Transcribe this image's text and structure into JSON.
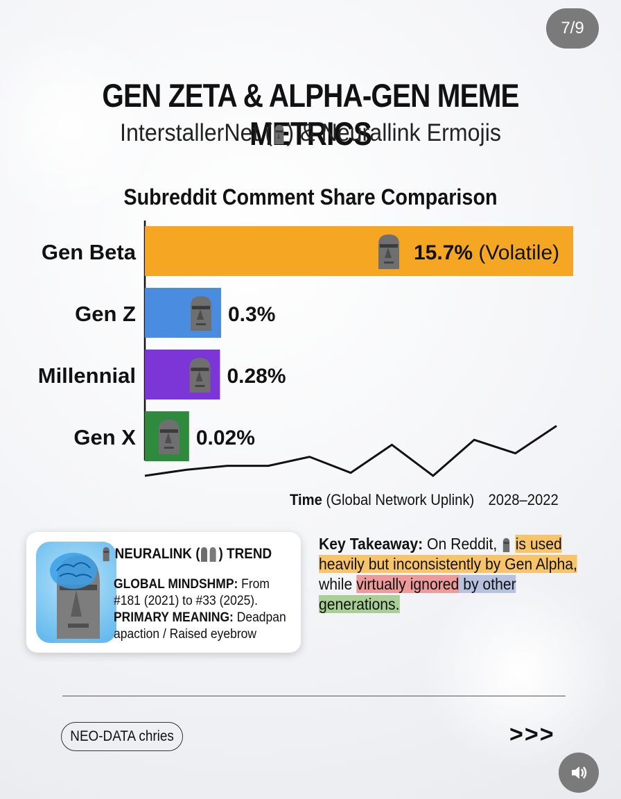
{
  "page_counter": "7/9",
  "title": "GEN ZETA & ALPHA-GEN MEME METRICS",
  "subtitle_prefix": "InterstallerNet (",
  "subtitle_suffix": ") & Neurallink Ermojis",
  "chart_data": {
    "type": "bar",
    "orientation": "horizontal",
    "title": "Subreddit Comment Share Comparison",
    "categories": [
      "Gen Beta",
      "Gen Z",
      "Millennial",
      "Gen X"
    ],
    "values": [
      15.7,
      0.3,
      0.28,
      0.02
    ],
    "value_labels": [
      "15.7% (Volatile)",
      "0.3%",
      "0.28%",
      "0.02%"
    ],
    "colors": [
      "#f5a623",
      "#4a8de0",
      "#7c35d6",
      "#2e8b3e"
    ],
    "xlabel_bold": "Time",
    "xlabel_rest": "(Global Network Uplink)",
    "x_range_label": "2028–2022",
    "trend_line": [
      0.0,
      0.12,
      0.2,
      0.2,
      0.38,
      0.06,
      0.62,
      0.0,
      0.72,
      0.45,
      1.0
    ]
  },
  "card": {
    "heading_prefix": "NEURALINK (",
    "heading_suffix": ") TREND",
    "line1_label": "GLOBAL MINDSHMP:",
    "line1_text": " From #181 (2021) to #33 (2025).",
    "line2_label": "PRIMARY MEANING:",
    "line2_text": " Deadpan apaction / Raised eyebrow"
  },
  "takeaway": {
    "label": "Key Takeaway:",
    "t1": " On Reddit, ",
    "h1": "is used heavily but inconsistently by Gen Alpha,",
    "t2": " while ",
    "h2": "virtually ignored",
    "h3": " by other",
    "h4": "generations."
  },
  "brand": "NEO-DATA chries",
  "next": ">>>",
  "icons": {
    "emoji": "moai-icon",
    "sound": "speaker-icon"
  }
}
